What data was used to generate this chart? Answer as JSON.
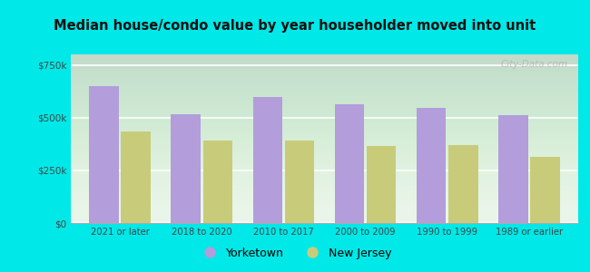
{
  "title": "Median house/condo value by year householder moved into unit",
  "categories": [
    "2021 or later",
    "2018 to 2020",
    "2010 to 2017",
    "2000 to 2009",
    "1990 to 1999",
    "1989 or earlier"
  ],
  "yorketown_values": [
    650000,
    515000,
    600000,
    565000,
    545000,
    510000
  ],
  "nj_values": [
    435000,
    390000,
    390000,
    365000,
    368000,
    315000
  ],
  "yorketown_color": "#b39ddb",
  "nj_color": "#c8cc7a",
  "background_color": "#00e8e8",
  "plot_bg_color": "#e8f5e9",
  "ytick_labels": [
    "$0",
    "$250k",
    "$500k",
    "$750k"
  ],
  "ytick_values": [
    0,
    250000,
    500000,
    750000
  ],
  "ylim": [
    0,
    800000
  ],
  "legend_yorketown": "Yorketown",
  "legend_nj": "New Jersey",
  "watermark": "City-Data.com",
  "bar_width": 0.36,
  "bar_gap": 0.03
}
